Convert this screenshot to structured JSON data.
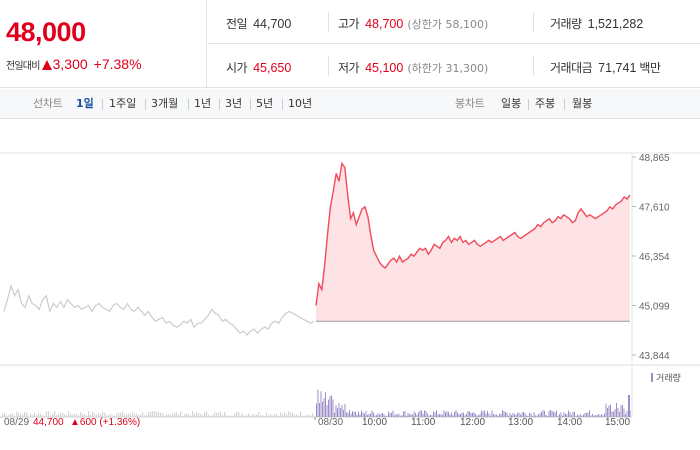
{
  "quote": {
    "price": "48,000",
    "change_label": "전일대비",
    "change_amount": "3,300",
    "change_rate": "+7.38%",
    "prev_close_label": "전일",
    "prev_close": "44,700",
    "high_label": "고가",
    "high": "48,700",
    "upper_limit_label": "(상한가 58,100)",
    "volume_label": "거래량",
    "volume": "1,521,282",
    "open_label": "시가",
    "open": "45,650",
    "low_label": "저가",
    "low": "45,100",
    "lower_limit_label": "(하한가 31,300)",
    "trade_value_label": "거래대금",
    "trade_value": "71,741",
    "trade_value_unit": "백만"
  },
  "tabs": {
    "line_title": "선차트",
    "line_periods": [
      "1일",
      "1주일",
      "3개월",
      "1년",
      "3년",
      "5년",
      "10년"
    ],
    "active_period": "1일",
    "candle_title": "봉차트",
    "candle_periods": [
      "일봉",
      "주봉",
      "월봉"
    ]
  },
  "colors": {
    "up": "#e0001b",
    "active_tab": "#1d4fa3",
    "volume": "#9c8fc9",
    "prev_line": "#cccccc"
  },
  "chart_data": {
    "type": "line",
    "y_ticks": [
      "48,865",
      "47,610",
      "46,354",
      "45,099",
      "43,844"
    ],
    "ylim": [
      43844,
      48865
    ],
    "baseline": 44700,
    "prev_day": {
      "label": "08/29",
      "close": "44,700",
      "change": "▲600 (+1.36%)",
      "values": [
        44950,
        45250,
        45600,
        45350,
        45500,
        45150,
        45050,
        45350,
        45150,
        45100,
        45000,
        45250,
        45350,
        44950,
        45150,
        45050,
        45200,
        45050,
        45250,
        45150,
        45050,
        45100,
        45000,
        45050,
        45100,
        44950,
        45100,
        45150,
        45050,
        45000,
        44950,
        45100,
        45150,
        45050,
        45000,
        45150,
        45000,
        44950,
        45050,
        44950,
        44850,
        44950,
        44800,
        44700,
        44750,
        44800,
        44650,
        44700,
        44600,
        44550,
        44600,
        44700,
        44650,
        44750,
        44550,
        44650,
        44650,
        44750,
        44850,
        45000,
        44900,
        44850,
        44700,
        44750,
        44650,
        44600,
        44500,
        44400,
        44450,
        44350,
        44450,
        44500,
        44400,
        44500,
        44550,
        44500,
        44650,
        44700,
        44650,
        44800,
        44900,
        44950,
        44900,
        44850,
        44800,
        44750,
        44700,
        44650,
        44700
      ]
    },
    "today": {
      "label": "08/30",
      "time_ticks": [
        "10:00",
        "11:00",
        "12:00",
        "13:00",
        "14:00",
        "15:00"
      ],
      "values": [
        45100,
        45650,
        45500,
        46100,
        46900,
        47600,
        48000,
        48450,
        48250,
        48700,
        48600,
        47900,
        47300,
        47450,
        47150,
        47350,
        47550,
        47600,
        47350,
        46900,
        46500,
        46350,
        46200,
        46100,
        46050,
        46150,
        46250,
        46300,
        46200,
        46350,
        46200,
        46250,
        46300,
        46400,
        46350,
        46450,
        46550,
        46500,
        46550,
        46400,
        46500,
        46650,
        46600,
        46550,
        46700,
        46750,
        46850,
        46700,
        46800,
        46750,
        46850,
        46700,
        46750,
        46650,
        46700,
        46750,
        46650,
        46600,
        46650,
        46700,
        46750,
        46700,
        46750,
        46800,
        46850,
        46750,
        46800,
        46850,
        46900,
        46950,
        46850,
        46800,
        46850,
        46900,
        46950,
        47000,
        47050,
        47150,
        47100,
        47200,
        47250,
        47300,
        47200,
        47250,
        47350,
        47300,
        47400,
        47350,
        47300,
        47200,
        47250,
        47450,
        47550,
        47450,
        47350,
        47400,
        47350,
        47300,
        47350,
        47400,
        47450,
        47500,
        47600,
        47550,
        47650,
        47700,
        47750,
        47850,
        47800,
        47900
      ]
    },
    "volume_label": "거래량"
  }
}
